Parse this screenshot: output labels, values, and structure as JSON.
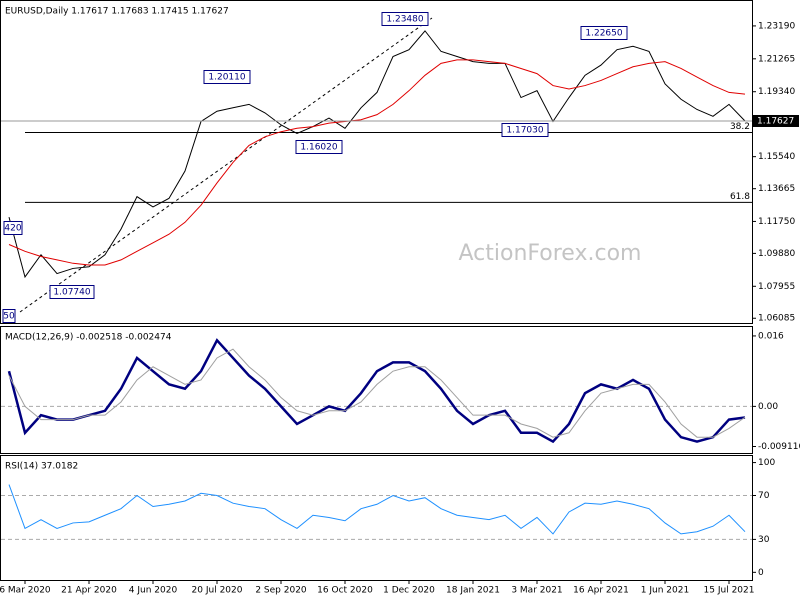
{
  "chart_data": [
    {
      "type": "line",
      "title": "EURUSD,Daily  1.17617 1.17683 1.17415 1.17627",
      "watermark": "ActionForex.com",
      "ylim": [
        1.05807,
        1.24648
      ],
      "yticks": [
        {
          "value": 1.2319,
          "label": "1.23190"
        },
        {
          "value": 1.21265,
          "label": "1.21265"
        },
        {
          "value": 1.1934,
          "label": "1.19340"
        },
        {
          "value": 1.1554,
          "label": "1.15540"
        },
        {
          "value": 1.13665,
          "label": "1.13665"
        },
        {
          "value": 1.1175,
          "label": "1.11750"
        },
        {
          "value": 1.0988,
          "label": "1.09880"
        },
        {
          "value": 1.07955,
          "label": "1.07955"
        },
        {
          "value": 1.06085,
          "label": "1.06085"
        }
      ],
      "last_price": 1.17627,
      "levels": [
        {
          "label": "38.2",
          "value": 1.1695
        },
        {
          "label": "61.8",
          "value": 1.12865
        }
      ],
      "annotations": [
        "1.23480",
        "1.20110",
        "1.16020",
        "1.17030",
        "1.22650",
        "1.07740",
        "420",
        "50"
      ],
      "series": [
        {
          "color": "#000000",
          "values": [
            1.12,
            1.085,
            1.098,
            1.087,
            1.09,
            1.091,
            1.098,
            1.113,
            1.132,
            1.126,
            1.131,
            1.147,
            1.176,
            1.182,
            1.184,
            1.186,
            1.181,
            1.174,
            1.169,
            1.173,
            1.178,
            1.172,
            1.184,
            1.193,
            1.214,
            1.218,
            1.229,
            1.217,
            1.214,
            1.211,
            1.21,
            1.21,
            1.19,
            1.194,
            1.176,
            1.19,
            1.203,
            1.209,
            1.218,
            1.22,
            1.217,
            1.198,
            1.189,
            1.183,
            1.179,
            1.186,
            1.17627
          ]
        },
        {
          "color": "#e00000",
          "values": [
            1.104,
            1.1,
            1.097,
            1.095,
            1.093,
            1.092,
            1.092,
            1.095,
            1.1,
            1.105,
            1.11,
            1.117,
            1.127,
            1.14,
            1.152,
            1.162,
            1.167,
            1.17,
            1.172,
            1.173,
            1.175,
            1.176,
            1.177,
            1.18,
            1.186,
            1.194,
            1.203,
            1.21,
            1.212,
            1.212,
            1.211,
            1.21,
            1.207,
            1.204,
            1.197,
            1.195,
            1.197,
            1.2,
            1.204,
            1.208,
            1.21,
            1.211,
            1.207,
            1.202,
            1.197,
            1.193,
            1.192
          ]
        }
      ]
    },
    {
      "type": "line",
      "title": "MACD(12,26,9) -0.002518 -0.002474",
      "ylim": [
        -0.01059,
        0.01803
      ],
      "yticks": [
        0.016,
        {
          "value": 0,
          "label": "0.00"
        },
        -0.009116
      ],
      "dashed_levels": [
        0
      ],
      "series": [
        {
          "color": "#000080",
          "values": [
            0.008,
            -0.006,
            -0.002,
            -0.003,
            -0.003,
            -0.002,
            -0.001,
            0.004,
            0.011,
            0.008,
            0.005,
            0.004,
            0.008,
            0.015,
            0.011,
            0.007,
            0.004,
            0.0,
            -0.004,
            -0.002,
            0.0,
            -0.001,
            0.003,
            0.008,
            0.01,
            0.01,
            0.008,
            0.004,
            -0.001,
            -0.004,
            -0.002,
            -0.001,
            -0.006,
            -0.006,
            -0.008,
            -0.004,
            0.003,
            0.005,
            0.004,
            0.006,
            0.004,
            -0.003,
            -0.007,
            -0.008,
            -0.007,
            -0.003,
            -0.002518
          ]
        },
        {
          "color": "#a0a0a0",
          "values": [
            0.007,
            0.0,
            -0.003,
            -0.003,
            -0.003,
            -0.002,
            -0.002,
            0.001,
            0.006,
            0.009,
            0.007,
            0.005,
            0.006,
            0.011,
            0.013,
            0.009,
            0.006,
            0.002,
            -0.001,
            -0.002,
            -0.001,
            -0.001,
            0.001,
            0.005,
            0.008,
            0.009,
            0.009,
            0.006,
            0.002,
            -0.002,
            -0.002,
            -0.002,
            -0.004,
            -0.005,
            -0.007,
            -0.006,
            -0.001,
            0.003,
            0.004,
            0.005,
            0.005,
            0.001,
            -0.004,
            -0.007,
            -0.007,
            -0.005,
            -0.002474
          ]
        }
      ]
    },
    {
      "type": "line",
      "title": "RSI(14) 37.0182",
      "ylim": [
        -7,
        106
      ],
      "yticks": [
        100,
        70,
        30,
        0
      ],
      "dashed_levels": [
        70,
        30
      ],
      "categories": [
        null,
        "6 Mar 2020",
        null,
        null,
        null,
        "21 Apr 2020",
        null,
        null,
        null,
        "4 Jun 2020",
        null,
        null,
        null,
        "20 Jul 2020",
        null,
        null,
        null,
        "2 Sep 2020",
        null,
        null,
        null,
        "16 Oct 2020",
        null,
        null,
        null,
        "1 Dec 2020",
        null,
        null,
        null,
        "18 Jan 2021",
        null,
        null,
        null,
        "3 Mar 2021",
        null,
        null,
        null,
        "16 Apr 2021",
        null,
        null,
        null,
        "1 Jun 2021",
        null,
        null,
        null,
        "15 Jul 2021",
        null
      ],
      "series": [
        {
          "color": "#1e90ff",
          "values": [
            80,
            40,
            48,
            40,
            45,
            46,
            52,
            58,
            70,
            60,
            62,
            65,
            72,
            70,
            63,
            60,
            58,
            48,
            40,
            52,
            50,
            47,
            58,
            62,
            70,
            65,
            68,
            58,
            52,
            50,
            48,
            52,
            40,
            50,
            35,
            55,
            63,
            62,
            65,
            62,
            58,
            45,
            35,
            37,
            42,
            52,
            37.0182
          ]
        }
      ]
    }
  ]
}
